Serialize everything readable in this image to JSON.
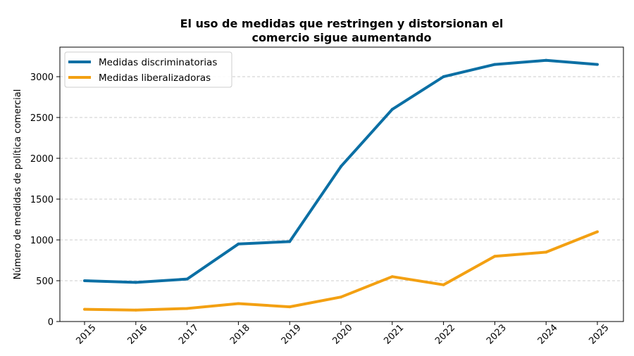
{
  "chart_data": {
    "type": "line",
    "title_lines": [
      "El uso de medidas que restringen y distorsionan el",
      "comercio sigue aumentando"
    ],
    "xlabel": "",
    "ylabel": "Número de medidas de política comercial",
    "x": [
      "2015",
      "2016",
      "2017",
      "2018",
      "2019",
      "2020",
      "2021",
      "2022",
      "2023",
      "2024",
      "2025"
    ],
    "ylim": [
      0,
      3350
    ],
    "yticks": [
      0,
      500,
      1000,
      1500,
      2000,
      2500,
      3000
    ],
    "grid": "y-dashed",
    "legend_position": "top-left",
    "series": [
      {
        "name": "Medidas discriminatorias",
        "color": "#0b6fa4",
        "values": [
          500,
          480,
          520,
          950,
          980,
          1900,
          2600,
          3000,
          3150,
          3200,
          3150
        ]
      },
      {
        "name": "Medidas liberalizadoras",
        "color": "#f3a012",
        "values": [
          150,
          140,
          160,
          220,
          180,
          300,
          550,
          450,
          800,
          850,
          1100
        ]
      }
    ]
  }
}
